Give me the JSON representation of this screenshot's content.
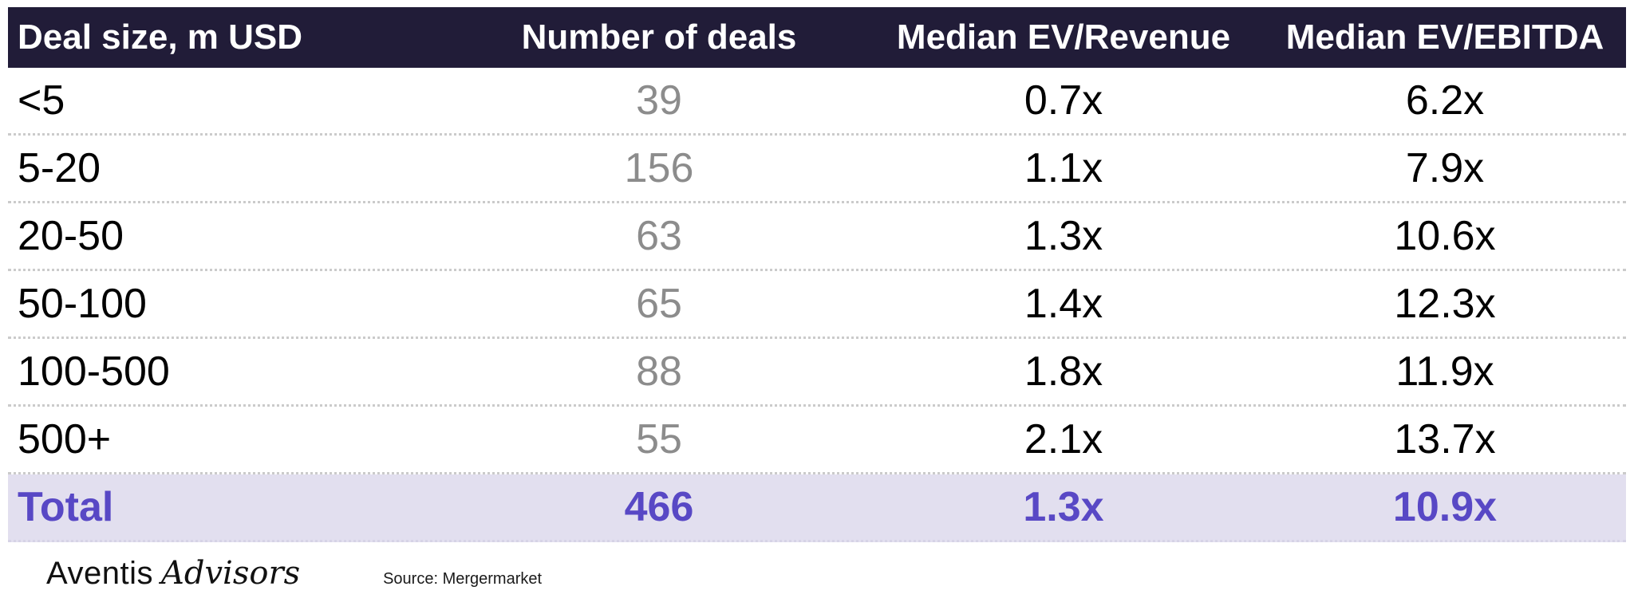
{
  "chart_data": {
    "type": "table",
    "columns": [
      "Deal size, m USD",
      "Number of deals",
      "Median EV/Revenue",
      "Median EV/EBITDA"
    ],
    "rows": [
      {
        "deal_size": "<5",
        "num_deals": "39",
        "ev_revenue": "0.7x",
        "ev_ebitda": "6.2x"
      },
      {
        "deal_size": "5-20",
        "num_deals": "156",
        "ev_revenue": "1.1x",
        "ev_ebitda": "7.9x"
      },
      {
        "deal_size": "20-50",
        "num_deals": "63",
        "ev_revenue": "1.3x",
        "ev_ebitda": "10.6x"
      },
      {
        "deal_size": "50-100",
        "num_deals": "65",
        "ev_revenue": "1.4x",
        "ev_ebitda": "12.3x"
      },
      {
        "deal_size": "100-500",
        "num_deals": "88",
        "ev_revenue": "1.8x",
        "ev_ebitda": "11.9x"
      },
      {
        "deal_size": "500+",
        "num_deals": "55",
        "ev_revenue": "2.1x",
        "ev_ebitda": "13.7x"
      }
    ],
    "total": {
      "label": "Total",
      "num_deals": "466",
      "ev_revenue": "1.3x",
      "ev_ebitda": "10.9x"
    },
    "layout": {
      "header_position": "top",
      "total_row_highlighted": true,
      "grid": "dotted-row-dividers"
    }
  },
  "footer": {
    "logo_primary": "Aventis",
    "logo_secondary": "Advisors",
    "source": "Source: Mergermarket"
  },
  "colors": {
    "header_bg": "#211c38",
    "header_text": "#ffffff",
    "body_text": "#000000",
    "deal_count_muted": "#8c8c8c",
    "total_bg": "#e2dfef",
    "total_text": "#5848c5",
    "row_divider": "#cbcbcb"
  }
}
